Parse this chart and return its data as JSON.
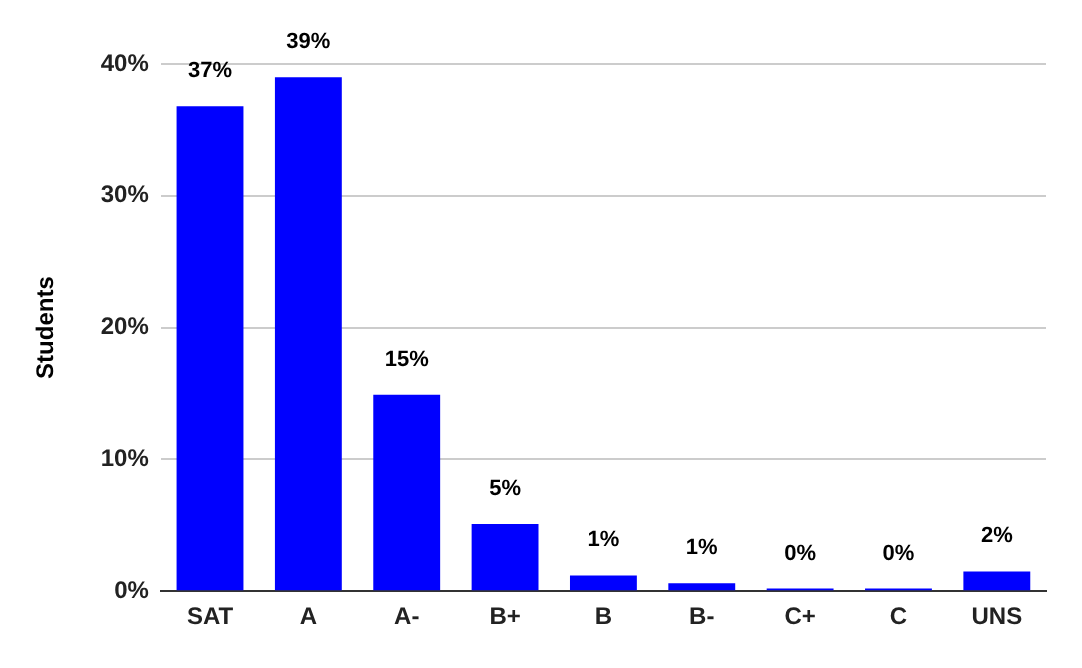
{
  "chart_data": {
    "type": "bar",
    "ylabel": "Students",
    "categories": [
      "SAT",
      "A",
      "A-",
      "B+",
      "B",
      "B-",
      "C+",
      "C",
      "UNS"
    ],
    "values": [
      36.8,
      39,
      14.9,
      5.1,
      1.2,
      0.6,
      0.2,
      0.2,
      1.5
    ],
    "value_labels": [
      "37%",
      "39%",
      "15%",
      "5%",
      "1%",
      "1%",
      "0%",
      "0%",
      "2%"
    ],
    "color": "#0000ff",
    "ylim": [
      0,
      40
    ],
    "yticks": [
      {
        "value": 0,
        "label": "0%"
      },
      {
        "value": 10,
        "label": "10%"
      },
      {
        "value": 20,
        "label": "20%"
      },
      {
        "value": 30,
        "label": "30%"
      },
      {
        "value": 40,
        "label": "40%"
      }
    ],
    "grid": "y",
    "legend": false
  }
}
